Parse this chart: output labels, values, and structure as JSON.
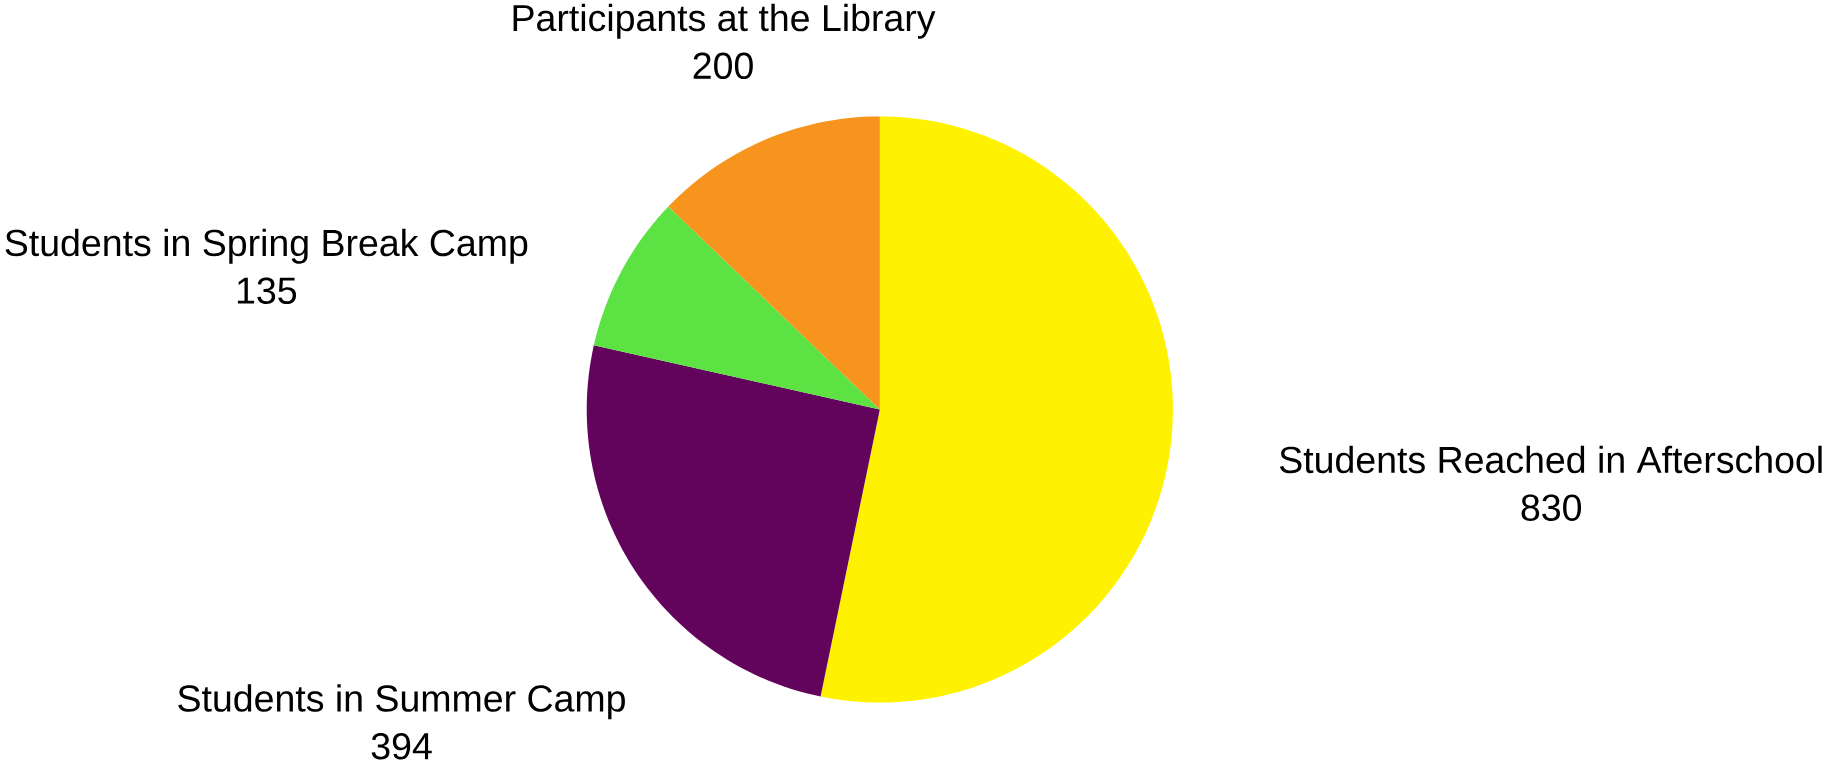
{
  "chart_data": {
    "type": "pie",
    "categories": [
      "Students Reached in Afterschool",
      "Students in Summer Camp",
      "Students in Spring Break Camp",
      "Participants at the Library"
    ],
    "values": [
      830,
      394,
      135,
      200
    ],
    "colors": [
      "#fff200",
      "#62045c",
      "#5ce343",
      "#f7941d"
    ],
    "data_labels": true
  }
}
